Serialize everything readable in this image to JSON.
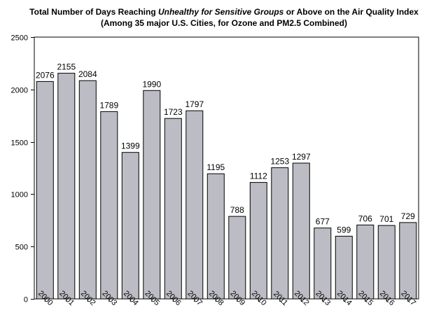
{
  "title": {
    "part1": "Total Number of Days Reaching ",
    "italic": "Unhealthy for Sensitive Groups",
    "part2": "  or Above on the Air Quality Index",
    "line2": "(Among 35 major U.S. Cities, for Ozone and PM2.5 Combined)"
  },
  "colors": {
    "bar_fill": "#bcbcc4",
    "bar_stroke": "#000000",
    "axis": "#000000"
  },
  "chart_data": {
    "type": "bar",
    "title": "Total Number of Days Reaching Unhealthy for Sensitive Groups  or Above on the Air Quality Index",
    "subtitle": "(Among 35 major U.S. Cities, for Ozone and PM2.5 Combined)",
    "categories": [
      "2000",
      "2001",
      "2002",
      "2003",
      "2004",
      "2005",
      "2006",
      "2007",
      "2008",
      "2009",
      "2010",
      "2011",
      "2012",
      "2013",
      "2014",
      "2015",
      "2016",
      "2017"
    ],
    "values": [
      2076,
      2155,
      2084,
      1789,
      1399,
      1990,
      1723,
      1797,
      1195,
      788,
      1112,
      1253,
      1297,
      677,
      599,
      706,
      701,
      729
    ],
    "xlabel": "",
    "ylabel": "",
    "ylim": [
      0,
      2500
    ],
    "yticks": [
      0,
      500,
      1000,
      1500,
      2000,
      2500
    ],
    "grid": false,
    "legend": "none",
    "data_labels": true
  }
}
